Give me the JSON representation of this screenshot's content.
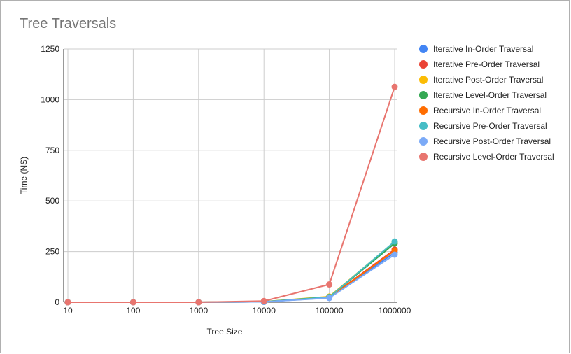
{
  "chart_data": {
    "type": "line",
    "title": "Tree Traversals",
    "xlabel": "Tree Size",
    "ylabel": "Time (NS)",
    "categories": [
      "10",
      "100",
      "1000",
      "10000",
      "100000",
      "1000000"
    ],
    "ylim": [
      0,
      1250
    ],
    "yticks": [
      0,
      250,
      500,
      750,
      1000,
      1250
    ],
    "grid": true,
    "legend_position": "right",
    "series": [
      {
        "name": "Iterative In-Order Traversal",
        "color": "#4285F4",
        "values": [
          0,
          0,
          0,
          2,
          22,
          245
        ]
      },
      {
        "name": "Iterative Pre-Order Traversal",
        "color": "#EA4335",
        "values": [
          0,
          0,
          0,
          2,
          24,
          260
        ]
      },
      {
        "name": "Iterative Post-Order Traversal",
        "color": "#FBBC04",
        "values": [
          0,
          0,
          0,
          3,
          28,
          298
        ]
      },
      {
        "name": "Iterative Level-Order Traversal",
        "color": "#34A853",
        "values": [
          0,
          0,
          0,
          3,
          26,
          290
        ]
      },
      {
        "name": "Recursive In-Order Traversal",
        "color": "#FF6D01",
        "values": [
          0,
          0,
          0,
          2,
          23,
          255
        ]
      },
      {
        "name": "Recursive Pre-Order Traversal",
        "color": "#46BDC6",
        "values": [
          0,
          0,
          0,
          2,
          25,
          300
        ]
      },
      {
        "name": "Recursive Post-Order Traversal",
        "color": "#7BAAF7",
        "values": [
          0,
          0,
          0,
          2,
          21,
          235
        ]
      },
      {
        "name": "Recursive Level-Order Traversal",
        "color": "#E8756F",
        "values": [
          0,
          0,
          0,
          6,
          88,
          1063
        ]
      }
    ]
  }
}
